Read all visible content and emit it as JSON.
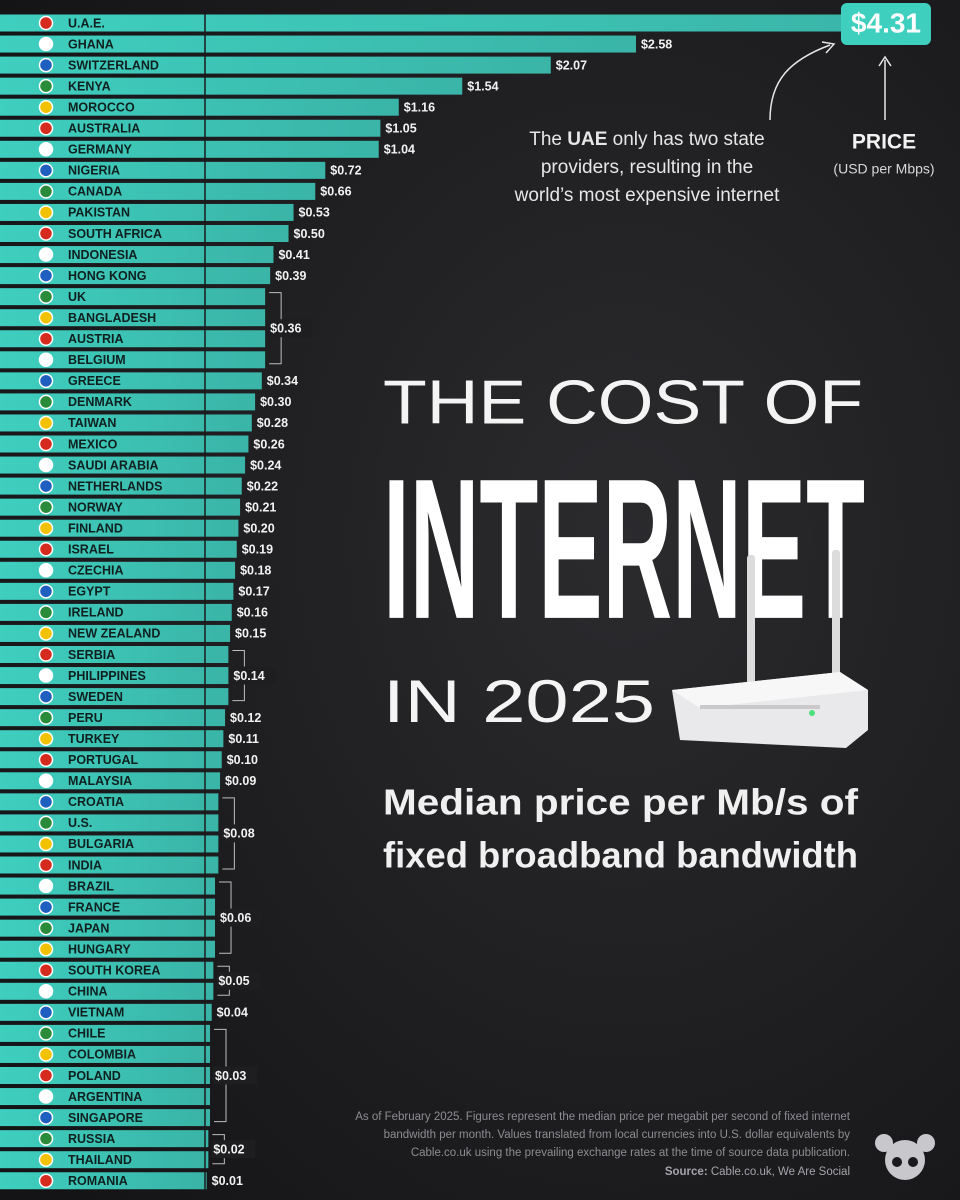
{
  "chart_data": {
    "type": "bar",
    "orientation": "horizontal",
    "title_lines": [
      "THE COST OF",
      "INTERNET",
      "IN 2025"
    ],
    "subtitle_lines": [
      "Median price per Mb/s of",
      "fixed broadband bandwidth"
    ],
    "unit_label": "PRICE",
    "unit_sublabel": "(USD per Mbps)",
    "annotation_lines": [
      [
        "The ",
        "UAE",
        " only has two state"
      ],
      [
        "providers, resulting in the"
      ],
      [
        "world’s most expensive internet"
      ]
    ],
    "note_lines": [
      "As of February 2025. Figures represent the median price per megabit per second of fixed internet",
      "bandwidth per month. Values translated from local currencies into U.S. dollar equivalents by",
      "Cable.co.uk using the prevailing exchange rates at the time of source data publication."
    ],
    "source_label": "Source:",
    "source": "Cable.co.uk, We Are Social",
    "color": "#3fcfbf",
    "xlim": [
      0,
      4.4
    ],
    "categories": [
      "U.A.E.",
      "GHANA",
      "SWITZERLAND",
      "KENYA",
      "MOROCCO",
      "AUSTRALIA",
      "GERMANY",
      "NIGERIA",
      "CANADA",
      "PAKISTAN",
      "SOUTH AFRICA",
      "INDONESIA",
      "HONG KONG",
      "UK",
      "BANGLADESH",
      "AUSTRIA",
      "BELGIUM",
      "GREECE",
      "DENMARK",
      "TAIWAN",
      "MEXICO",
      "SAUDI ARABIA",
      "NETHERLANDS",
      "NORWAY",
      "FINLAND",
      "ISRAEL",
      "CZECHIA",
      "EGYPT",
      "IRELAND",
      "NEW ZEALAND",
      "SERBIA",
      "PHILIPPINES",
      "SWEDEN",
      "PERU",
      "TURKEY",
      "PORTUGAL",
      "MALAYSIA",
      "CROATIA",
      "U.S.",
      "BULGARIA",
      "INDIA",
      "BRAZIL",
      "FRANCE",
      "JAPAN",
      "HUNGARY",
      "SOUTH KOREA",
      "CHINA",
      "VIETNAM",
      "CHILE",
      "COLOMBIA",
      "POLAND",
      "ARGENTINA",
      "SINGAPORE",
      "RUSSIA",
      "THAILAND",
      "ROMANIA"
    ],
    "values": [
      4.31,
      2.58,
      2.07,
      1.54,
      1.16,
      1.05,
      1.04,
      0.72,
      0.66,
      0.53,
      0.5,
      0.41,
      0.39,
      0.36,
      0.36,
      0.36,
      0.36,
      0.34,
      0.3,
      0.28,
      0.26,
      0.24,
      0.22,
      0.21,
      0.2,
      0.19,
      0.18,
      0.17,
      0.16,
      0.15,
      0.14,
      0.14,
      0.14,
      0.12,
      0.11,
      0.1,
      0.09,
      0.08,
      0.08,
      0.08,
      0.08,
      0.06,
      0.06,
      0.06,
      0.06,
      0.05,
      0.05,
      0.04,
      0.03,
      0.03,
      0.03,
      0.03,
      0.03,
      0.02,
      0.02,
      0.01
    ],
    "value_labels": [
      "$4.31",
      "$2.58",
      "$2.07",
      "$1.54",
      "$1.16",
      "$1.05",
      "$1.04",
      "$0.72",
      "$0.66",
      "$0.53",
      "$0.50",
      "$0.41",
      "$0.39",
      "$0.36",
      null,
      null,
      null,
      "$0.34",
      "$0.30",
      "$0.28",
      "$0.26",
      "$0.24",
      "$0.22",
      "$0.21",
      "$0.20",
      "$0.19",
      "$0.18",
      "$0.17",
      "$0.16",
      "$0.15",
      "$0.14",
      null,
      null,
      "$0.12",
      "$0.11",
      "$0.10",
      "$0.09",
      "$0.08",
      null,
      null,
      null,
      "$0.06",
      null,
      null,
      null,
      "$0.05",
      null,
      "$0.04",
      "$0.03",
      null,
      null,
      null,
      null,
      "$0.02",
      null,
      "$0.01"
    ]
  }
}
